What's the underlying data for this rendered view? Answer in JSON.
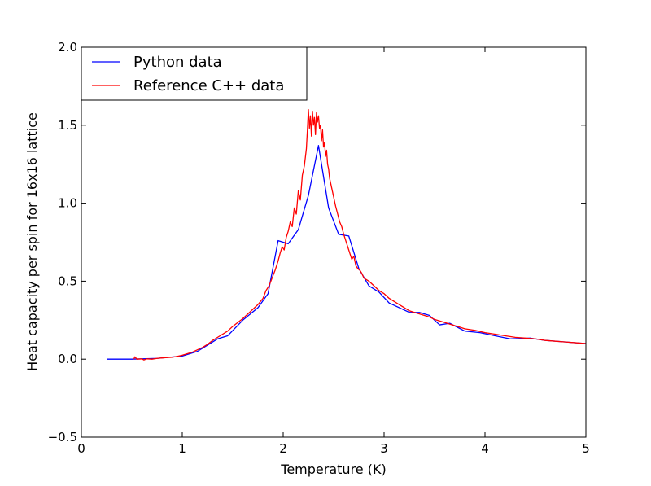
{
  "chart_data": {
    "type": "line",
    "title": "",
    "xlabel": "Temperature (K)",
    "ylabel": "Heat capacity per spin for 16x16 lattice",
    "xlim": [
      0,
      5
    ],
    "ylim": [
      -0.5,
      2.0
    ],
    "xticks": [
      0,
      1,
      2,
      3,
      4,
      5
    ],
    "xtick_labels": [
      "0",
      "1",
      "2",
      "3",
      "4",
      "5"
    ],
    "yticks": [
      -0.5,
      0.0,
      0.5,
      1.0,
      1.5,
      2.0
    ],
    "ytick_labels": [
      "−0.5",
      "0.0",
      "0.5",
      "1.0",
      "1.5",
      "2.0"
    ],
    "grid": false,
    "legend_position": "top-left",
    "series": [
      {
        "name": "Python data",
        "color": "#0000ff",
        "points": [
          [
            0.25,
            0.0
          ],
          [
            0.5,
            0.0
          ],
          [
            0.75,
            0.005
          ],
          [
            1.0,
            0.02
          ],
          [
            1.15,
            0.05
          ],
          [
            1.35,
            0.13
          ],
          [
            1.45,
            0.15
          ],
          [
            1.6,
            0.25
          ],
          [
            1.75,
            0.33
          ],
          [
            1.85,
            0.42
          ],
          [
            1.95,
            0.76
          ],
          [
            2.05,
            0.74
          ],
          [
            2.15,
            0.83
          ],
          [
            2.25,
            1.05
          ],
          [
            2.35,
            1.37
          ],
          [
            2.45,
            0.97
          ],
          [
            2.55,
            0.8
          ],
          [
            2.65,
            0.79
          ],
          [
            2.75,
            0.58
          ],
          [
            2.85,
            0.47
          ],
          [
            2.95,
            0.43
          ],
          [
            3.05,
            0.36
          ],
          [
            3.25,
            0.3
          ],
          [
            3.35,
            0.3
          ],
          [
            3.45,
            0.28
          ],
          [
            3.55,
            0.22
          ],
          [
            3.65,
            0.23
          ],
          [
            3.8,
            0.18
          ],
          [
            3.95,
            0.17
          ],
          [
            4.1,
            0.15
          ],
          [
            4.25,
            0.13
          ],
          [
            4.45,
            0.135
          ],
          [
            4.6,
            0.12
          ],
          [
            4.8,
            0.11
          ],
          [
            5.0,
            0.1
          ]
        ]
      },
      {
        "name": "Reference C++ data",
        "color": "#ff0000",
        "points": [
          [
            0.52,
            0.0
          ],
          [
            0.53,
            0.015
          ],
          [
            0.55,
            0.0
          ],
          [
            0.6,
            0.002
          ],
          [
            0.62,
            -0.005
          ],
          [
            0.65,
            0.002
          ],
          [
            0.7,
            0.0
          ],
          [
            0.75,
            0.005
          ],
          [
            0.8,
            0.008
          ],
          [
            0.85,
            0.01
          ],
          [
            0.9,
            0.012
          ],
          [
            0.95,
            0.018
          ],
          [
            1.0,
            0.025
          ],
          [
            1.05,
            0.035
          ],
          [
            1.1,
            0.045
          ],
          [
            1.15,
            0.06
          ],
          [
            1.2,
            0.075
          ],
          [
            1.25,
            0.095
          ],
          [
            1.3,
            0.12
          ],
          [
            1.35,
            0.14
          ],
          [
            1.4,
            0.16
          ],
          [
            1.45,
            0.18
          ],
          [
            1.5,
            0.21
          ],
          [
            1.55,
            0.235
          ],
          [
            1.6,
            0.26
          ],
          [
            1.65,
            0.29
          ],
          [
            1.7,
            0.32
          ],
          [
            1.75,
            0.35
          ],
          [
            1.8,
            0.39
          ],
          [
            1.83,
            0.44
          ],
          [
            1.86,
            0.47
          ],
          [
            1.89,
            0.52
          ],
          [
            1.92,
            0.57
          ],
          [
            1.95,
            0.63
          ],
          [
            1.97,
            0.68
          ],
          [
            1.99,
            0.72
          ],
          [
            2.01,
            0.7
          ],
          [
            2.03,
            0.78
          ],
          [
            2.05,
            0.82
          ],
          [
            2.07,
            0.88
          ],
          [
            2.09,
            0.85
          ],
          [
            2.11,
            0.97
          ],
          [
            2.13,
            0.93
          ],
          [
            2.15,
            1.08
          ],
          [
            2.17,
            1.02
          ],
          [
            2.19,
            1.18
          ],
          [
            2.21,
            1.24
          ],
          [
            2.23,
            1.35
          ],
          [
            2.24,
            1.47
          ],
          [
            2.25,
            1.6
          ],
          [
            2.26,
            1.48
          ],
          [
            2.27,
            1.56
          ],
          [
            2.28,
            1.43
          ],
          [
            2.29,
            1.59
          ],
          [
            2.3,
            1.5
          ],
          [
            2.31,
            1.55
          ],
          [
            2.32,
            1.44
          ],
          [
            2.33,
            1.58
          ],
          [
            2.34,
            1.52
          ],
          [
            2.35,
            1.56
          ],
          [
            2.36,
            1.48
          ],
          [
            2.37,
            1.5
          ],
          [
            2.38,
            1.4
          ],
          [
            2.39,
            1.47
          ],
          [
            2.4,
            1.36
          ],
          [
            2.41,
            1.39
          ],
          [
            2.42,
            1.3
          ],
          [
            2.43,
            1.34
          ],
          [
            2.44,
            1.25
          ],
          [
            2.45,
            1.22
          ],
          [
            2.46,
            1.16
          ],
          [
            2.48,
            1.1
          ],
          [
            2.5,
            1.04
          ],
          [
            2.52,
            0.98
          ],
          [
            2.54,
            0.93
          ],
          [
            2.56,
            0.88
          ],
          [
            2.58,
            0.85
          ],
          [
            2.6,
            0.8
          ],
          [
            2.62,
            0.76
          ],
          [
            2.64,
            0.72
          ],
          [
            2.66,
            0.68
          ],
          [
            2.68,
            0.64
          ],
          [
            2.7,
            0.66
          ],
          [
            2.72,
            0.6
          ],
          [
            2.74,
            0.58
          ],
          [
            2.76,
            0.57
          ],
          [
            2.78,
            0.55
          ],
          [
            2.8,
            0.52
          ],
          [
            2.85,
            0.5
          ],
          [
            2.9,
            0.47
          ],
          [
            2.95,
            0.44
          ],
          [
            3.0,
            0.42
          ],
          [
            3.05,
            0.39
          ],
          [
            3.1,
            0.37
          ],
          [
            3.15,
            0.35
          ],
          [
            3.2,
            0.33
          ],
          [
            3.25,
            0.31
          ],
          [
            3.3,
            0.3
          ],
          [
            3.35,
            0.29
          ],
          [
            3.4,
            0.28
          ],
          [
            3.45,
            0.27
          ],
          [
            3.5,
            0.255
          ],
          [
            3.55,
            0.245
          ],
          [
            3.6,
            0.235
          ],
          [
            3.65,
            0.225
          ],
          [
            3.7,
            0.215
          ],
          [
            3.75,
            0.205
          ],
          [
            3.8,
            0.195
          ],
          [
            3.9,
            0.185
          ],
          [
            4.0,
            0.17
          ],
          [
            4.1,
            0.16
          ],
          [
            4.2,
            0.15
          ],
          [
            4.3,
            0.14
          ],
          [
            4.4,
            0.135
          ],
          [
            4.5,
            0.13
          ],
          [
            4.6,
            0.12
          ],
          [
            4.7,
            0.115
          ],
          [
            4.8,
            0.11
          ],
          [
            4.9,
            0.105
          ],
          [
            5.0,
            0.1
          ]
        ]
      }
    ]
  }
}
